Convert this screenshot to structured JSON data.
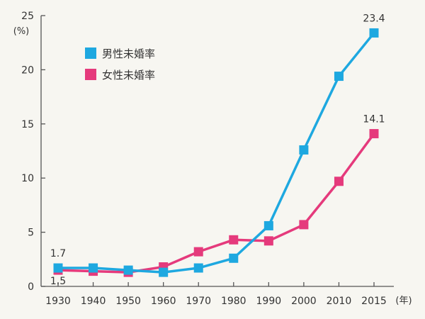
{
  "chart_data": {
    "type": "line",
    "title": "",
    "xlabel": "(年)",
    "ylabel": "(%)",
    "ylim": [
      0,
      25
    ],
    "yticks": [
      0,
      5,
      10,
      15,
      20,
      25
    ],
    "x": [
      "1930",
      "1940",
      "1950",
      "1960",
      "1970",
      "1980",
      "1990",
      "2000",
      "2010",
      "2015"
    ],
    "series": [
      {
        "name": "男性未婚率",
        "color": "#1ea8e0",
        "values": [
          1.7,
          1.7,
          1.5,
          1.3,
          1.7,
          2.6,
          5.6,
          12.6,
          19.4,
          23.4
        ]
      },
      {
        "name": "女性未婚率",
        "color": "#e53a7c",
        "values": [
          1.5,
          1.4,
          1.3,
          1.8,
          3.2,
          4.3,
          4.2,
          5.7,
          9.7,
          14.1
        ]
      }
    ],
    "annotations": [
      {
        "series": 0,
        "index": 0,
        "text": "1.7",
        "position": "above"
      },
      {
        "series": 1,
        "index": 0,
        "text": "1.5",
        "position": "below"
      },
      {
        "series": 0,
        "index": 9,
        "text": "23.4",
        "position": "above"
      },
      {
        "series": 1,
        "index": 9,
        "text": "14.1",
        "position": "above"
      }
    ],
    "legend": "top-left",
    "grid": false
  }
}
